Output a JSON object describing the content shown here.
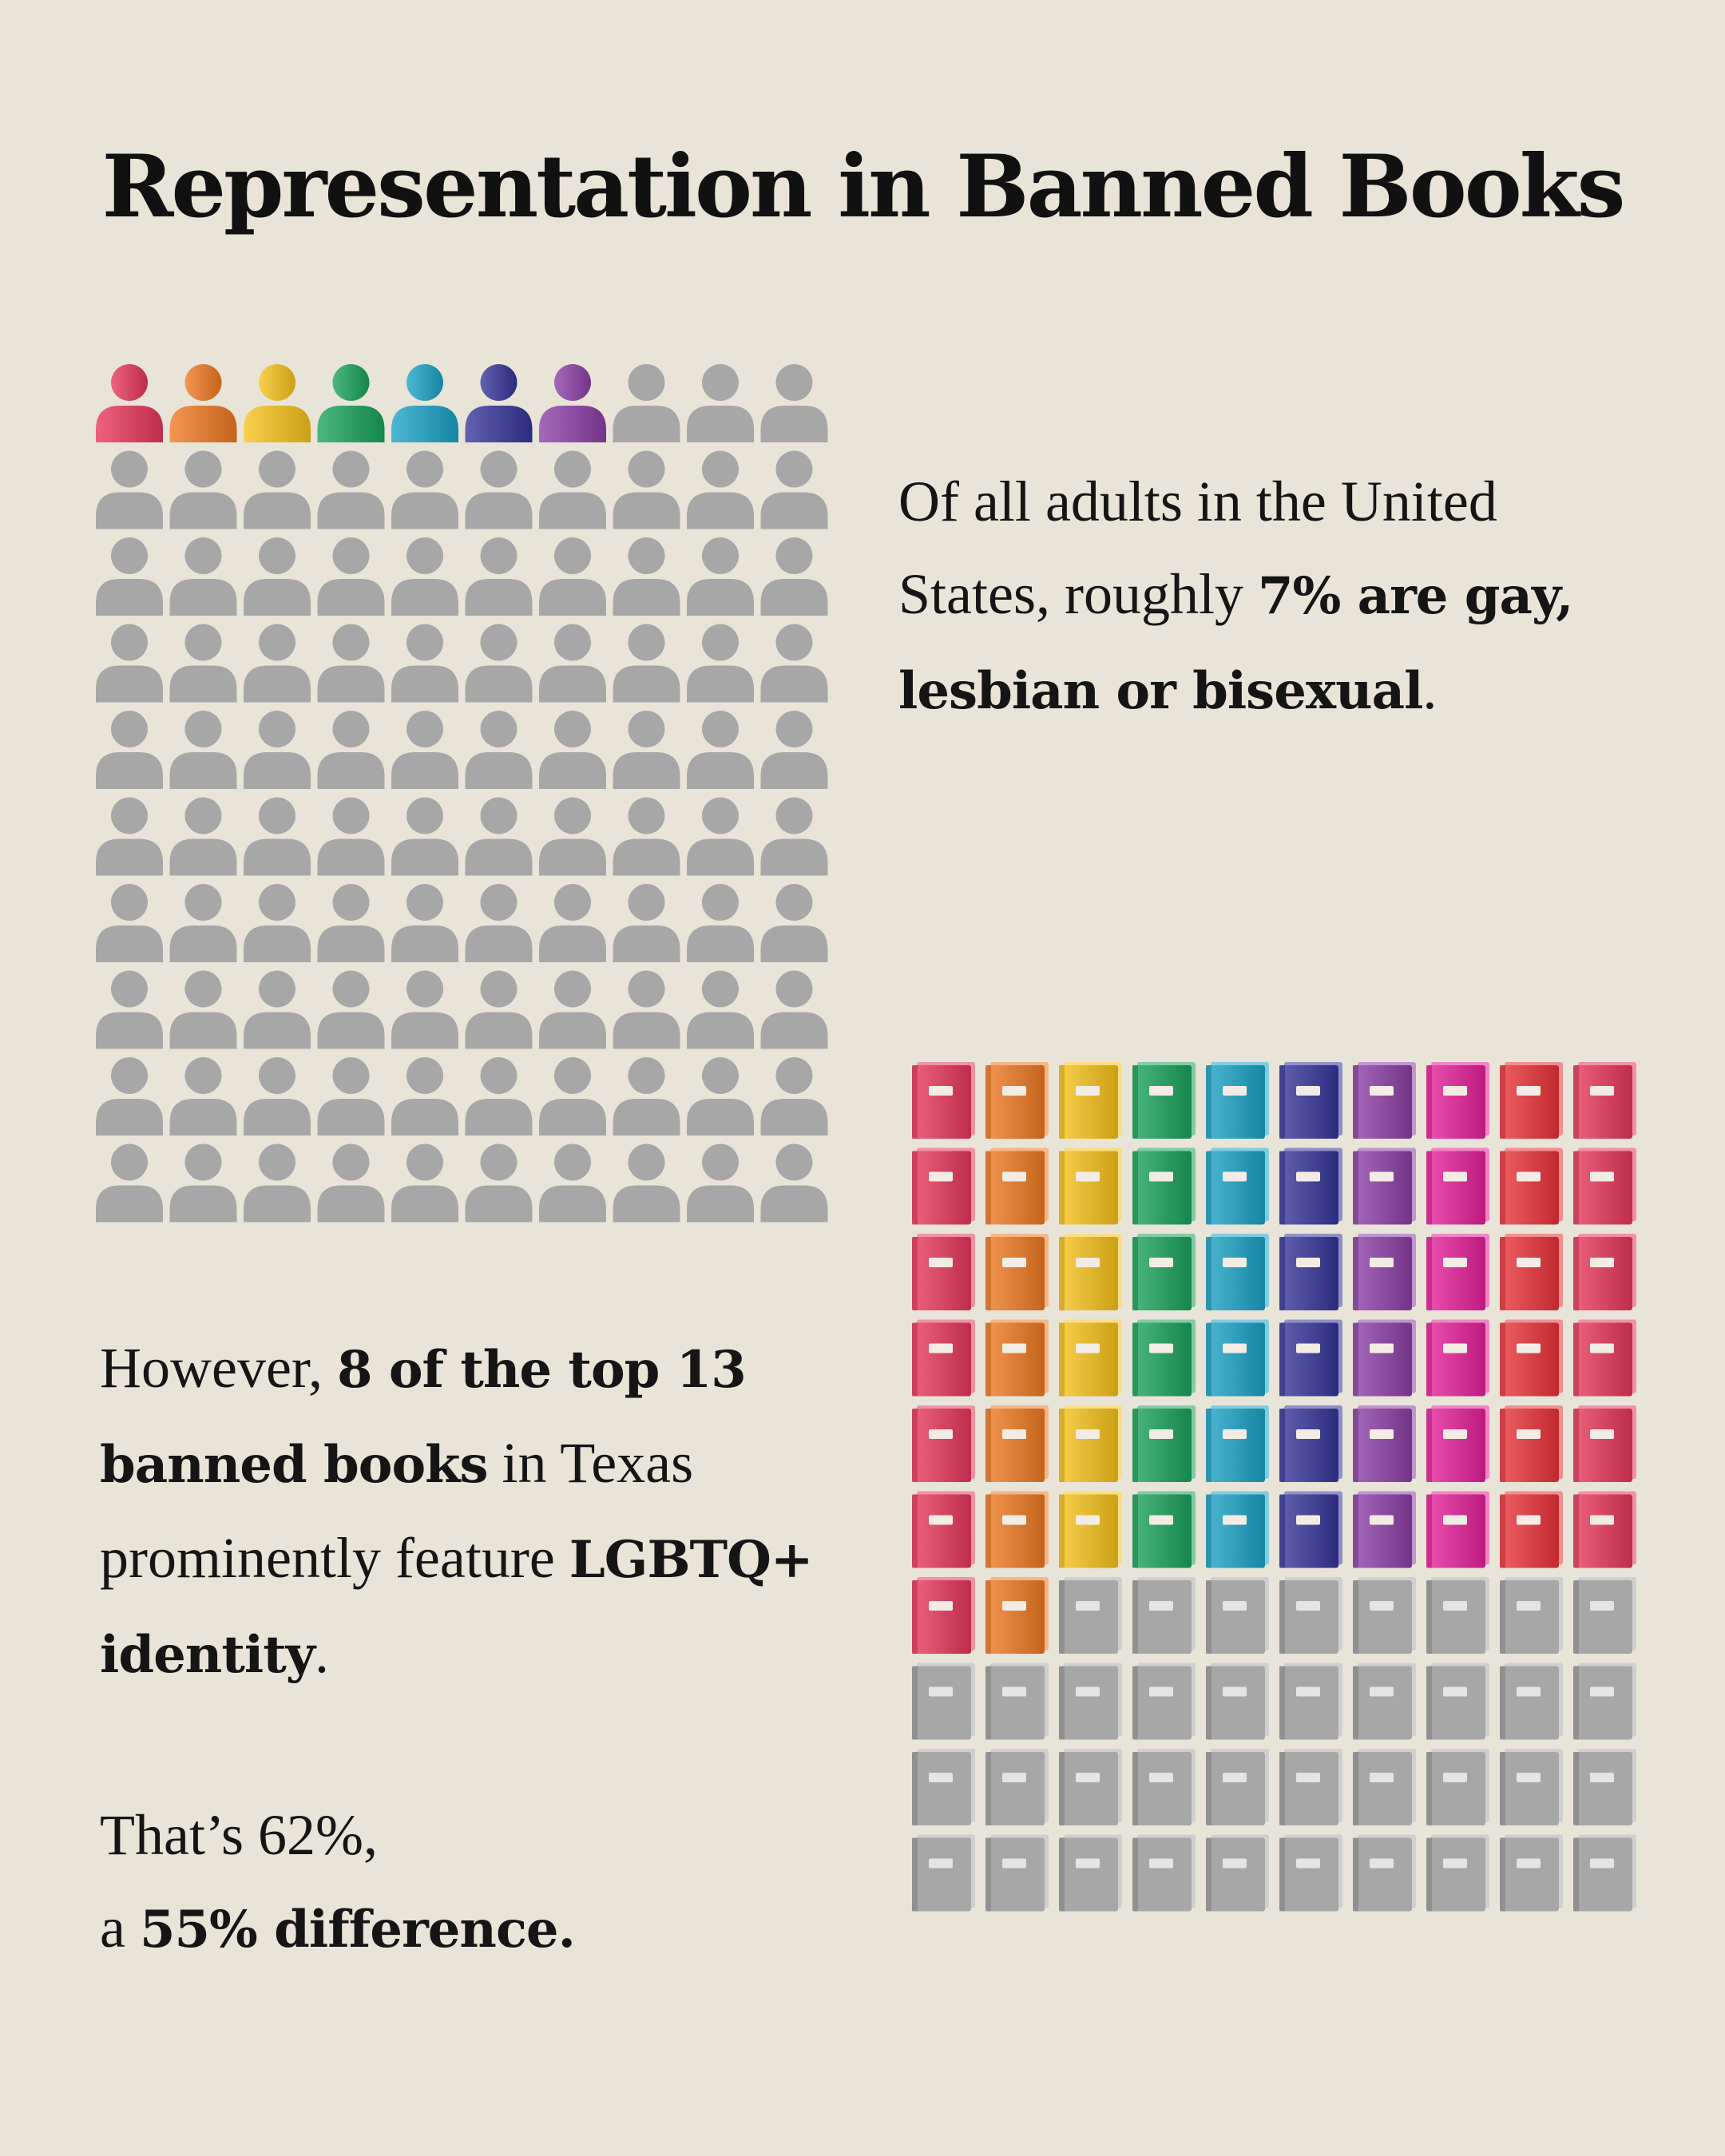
{
  "title": "Representation in Banned Books",
  "adults_text": {
    "part1": "Of all adults in the United States, roughly ",
    "bold": "7% are gay, lesbian or bisexual",
    "part2": "."
  },
  "books_text": {
    "part1": "However, ",
    "bold1": "8 of the top 13 banned books",
    "part2": " in Texas prominently feature ",
    "bold2": "LGBTQ+ identity",
    "part3": "."
  },
  "difference_text": {
    "line1": "That’s 62%,",
    "line2_prefix": "a ",
    "line2_bold": "55% difference."
  },
  "chart_data": [
    {
      "type": "pictogram",
      "icon": "person-icon",
      "total": 100,
      "highlighted": 7,
      "highlight_colors": [
        "#e8375a",
        "#ef7a22",
        "#f7c31b",
        "#1aa35a",
        "#1ba3c6",
        "#36349a",
        "#8c3fa6"
      ],
      "inactive_color": "#a7a7a7"
    },
    {
      "type": "pictogram",
      "icon": "book-icon",
      "total": 100,
      "highlighted": 62,
      "column_colors": [
        "#e8375a",
        "#ef7a22",
        "#f7c31b",
        "#1aa35a",
        "#1ba3c6",
        "#36349a",
        "#8c3fa6",
        "#e6209a",
        "#ea3238",
        "#e8375a"
      ],
      "inactive_color": "#a7a7a7"
    }
  ]
}
